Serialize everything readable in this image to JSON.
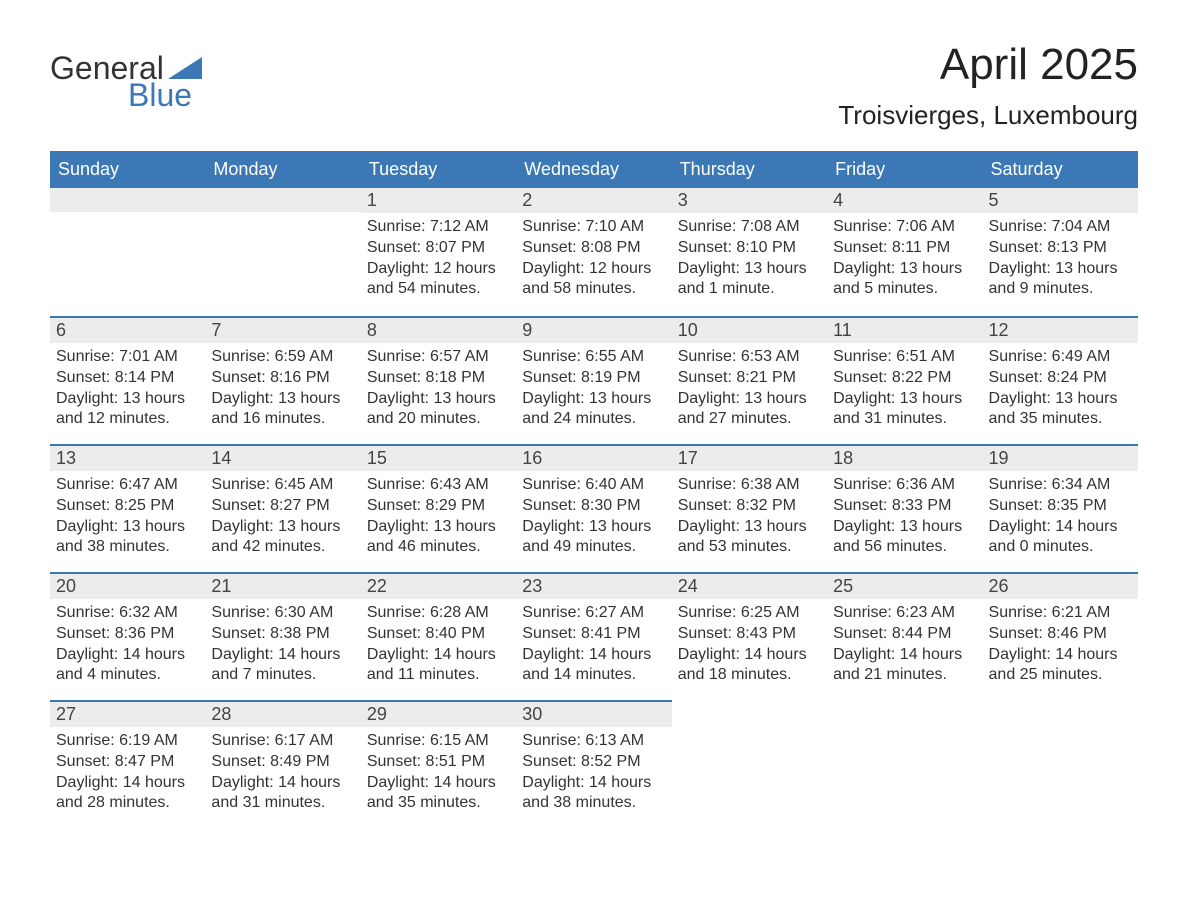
{
  "brand": {
    "word1": "General",
    "word2": "Blue",
    "word1_color": "#333333",
    "word2_color": "#3b78b5",
    "triangle_color": "#3b78b5"
  },
  "title": "April 2025",
  "location": "Troisvierges, Luxembourg",
  "colors": {
    "header_bg": "#3b78b5",
    "header_text": "#ffffff",
    "daynum_bg": "#ececec",
    "rule": "#3b78b5",
    "body_text": "#333333"
  },
  "day_headers": [
    "Sunday",
    "Monday",
    "Tuesday",
    "Wednesday",
    "Thursday",
    "Friday",
    "Saturday"
  ],
  "weeks": [
    [
      null,
      null,
      {
        "n": "1",
        "sunrise": "Sunrise: 7:12 AM",
        "sunset": "Sunset: 8:07 PM",
        "daylight": "Daylight: 12 hours and 54 minutes."
      },
      {
        "n": "2",
        "sunrise": "Sunrise: 7:10 AM",
        "sunset": "Sunset: 8:08 PM",
        "daylight": "Daylight: 12 hours and 58 minutes."
      },
      {
        "n": "3",
        "sunrise": "Sunrise: 7:08 AM",
        "sunset": "Sunset: 8:10 PM",
        "daylight": "Daylight: 13 hours and 1 minute."
      },
      {
        "n": "4",
        "sunrise": "Sunrise: 7:06 AM",
        "sunset": "Sunset: 8:11 PM",
        "daylight": "Daylight: 13 hours and 5 minutes."
      },
      {
        "n": "5",
        "sunrise": "Sunrise: 7:04 AM",
        "sunset": "Sunset: 8:13 PM",
        "daylight": "Daylight: 13 hours and 9 minutes."
      }
    ],
    [
      {
        "n": "6",
        "sunrise": "Sunrise: 7:01 AM",
        "sunset": "Sunset: 8:14 PM",
        "daylight": "Daylight: 13 hours and 12 minutes."
      },
      {
        "n": "7",
        "sunrise": "Sunrise: 6:59 AM",
        "sunset": "Sunset: 8:16 PM",
        "daylight": "Daylight: 13 hours and 16 minutes."
      },
      {
        "n": "8",
        "sunrise": "Sunrise: 6:57 AM",
        "sunset": "Sunset: 8:18 PM",
        "daylight": "Daylight: 13 hours and 20 minutes."
      },
      {
        "n": "9",
        "sunrise": "Sunrise: 6:55 AM",
        "sunset": "Sunset: 8:19 PM",
        "daylight": "Daylight: 13 hours and 24 minutes."
      },
      {
        "n": "10",
        "sunrise": "Sunrise: 6:53 AM",
        "sunset": "Sunset: 8:21 PM",
        "daylight": "Daylight: 13 hours and 27 minutes."
      },
      {
        "n": "11",
        "sunrise": "Sunrise: 6:51 AM",
        "sunset": "Sunset: 8:22 PM",
        "daylight": "Daylight: 13 hours and 31 minutes."
      },
      {
        "n": "12",
        "sunrise": "Sunrise: 6:49 AM",
        "sunset": "Sunset: 8:24 PM",
        "daylight": "Daylight: 13 hours and 35 minutes."
      }
    ],
    [
      {
        "n": "13",
        "sunrise": "Sunrise: 6:47 AM",
        "sunset": "Sunset: 8:25 PM",
        "daylight": "Daylight: 13 hours and 38 minutes."
      },
      {
        "n": "14",
        "sunrise": "Sunrise: 6:45 AM",
        "sunset": "Sunset: 8:27 PM",
        "daylight": "Daylight: 13 hours and 42 minutes."
      },
      {
        "n": "15",
        "sunrise": "Sunrise: 6:43 AM",
        "sunset": "Sunset: 8:29 PM",
        "daylight": "Daylight: 13 hours and 46 minutes."
      },
      {
        "n": "16",
        "sunrise": "Sunrise: 6:40 AM",
        "sunset": "Sunset: 8:30 PM",
        "daylight": "Daylight: 13 hours and 49 minutes."
      },
      {
        "n": "17",
        "sunrise": "Sunrise: 6:38 AM",
        "sunset": "Sunset: 8:32 PM",
        "daylight": "Daylight: 13 hours and 53 minutes."
      },
      {
        "n": "18",
        "sunrise": "Sunrise: 6:36 AM",
        "sunset": "Sunset: 8:33 PM",
        "daylight": "Daylight: 13 hours and 56 minutes."
      },
      {
        "n": "19",
        "sunrise": "Sunrise: 6:34 AM",
        "sunset": "Sunset: 8:35 PM",
        "daylight": "Daylight: 14 hours and 0 minutes."
      }
    ],
    [
      {
        "n": "20",
        "sunrise": "Sunrise: 6:32 AM",
        "sunset": "Sunset: 8:36 PM",
        "daylight": "Daylight: 14 hours and 4 minutes."
      },
      {
        "n": "21",
        "sunrise": "Sunrise: 6:30 AM",
        "sunset": "Sunset: 8:38 PM",
        "daylight": "Daylight: 14 hours and 7 minutes."
      },
      {
        "n": "22",
        "sunrise": "Sunrise: 6:28 AM",
        "sunset": "Sunset: 8:40 PM",
        "daylight": "Daylight: 14 hours and 11 minutes."
      },
      {
        "n": "23",
        "sunrise": "Sunrise: 6:27 AM",
        "sunset": "Sunset: 8:41 PM",
        "daylight": "Daylight: 14 hours and 14 minutes."
      },
      {
        "n": "24",
        "sunrise": "Sunrise: 6:25 AM",
        "sunset": "Sunset: 8:43 PM",
        "daylight": "Daylight: 14 hours and 18 minutes."
      },
      {
        "n": "25",
        "sunrise": "Sunrise: 6:23 AM",
        "sunset": "Sunset: 8:44 PM",
        "daylight": "Daylight: 14 hours and 21 minutes."
      },
      {
        "n": "26",
        "sunrise": "Sunrise: 6:21 AM",
        "sunset": "Sunset: 8:46 PM",
        "daylight": "Daylight: 14 hours and 25 minutes."
      }
    ],
    [
      {
        "n": "27",
        "sunrise": "Sunrise: 6:19 AM",
        "sunset": "Sunset: 8:47 PM",
        "daylight": "Daylight: 14 hours and 28 minutes."
      },
      {
        "n": "28",
        "sunrise": "Sunrise: 6:17 AM",
        "sunset": "Sunset: 8:49 PM",
        "daylight": "Daylight: 14 hours and 31 minutes."
      },
      {
        "n": "29",
        "sunrise": "Sunrise: 6:15 AM",
        "sunset": "Sunset: 8:51 PM",
        "daylight": "Daylight: 14 hours and 35 minutes."
      },
      {
        "n": "30",
        "sunrise": "Sunrise: 6:13 AM",
        "sunset": "Sunset: 8:52 PM",
        "daylight": "Daylight: 14 hours and 38 minutes."
      },
      null,
      null,
      null
    ]
  ]
}
